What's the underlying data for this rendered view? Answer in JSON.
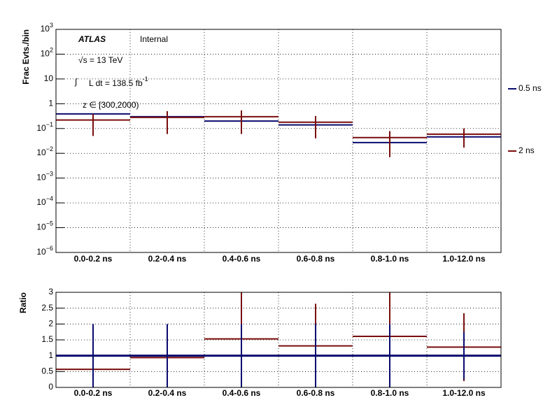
{
  "chart_data": [
    {
      "type": "step",
      "ylabel": "Frac Evts./bin",
      "categories": [
        "0.0-0.2 ns",
        "0.2-0.4 ns",
        "0.4-0.6 ns",
        "0.6-0.8 ns",
        "0.8-1.0 ns",
        "1.0-12.0 ns"
      ],
      "log_y": true,
      "ylim": [
        1e-06,
        1000
      ],
      "yticks": [
        {
          "value": 1e-06,
          "label": "10",
          "sup": "−6"
        },
        {
          "value": 1e-05,
          "label": "10",
          "sup": "−5"
        },
        {
          "value": 0.0001,
          "label": "10",
          "sup": "−4"
        },
        {
          "value": 0.001,
          "label": "10",
          "sup": "−3"
        },
        {
          "value": 0.01,
          "label": "10",
          "sup": "−2"
        },
        {
          "value": 0.1,
          "label": "10",
          "sup": "−1"
        },
        1,
        10,
        {
          "value": 100,
          "label": "10",
          "sup": "2"
        },
        {
          "value": 1000,
          "label": "10",
          "sup": "3"
        }
      ],
      "grid": true,
      "legend": "right",
      "series": [
        {
          "name": "0.5 ns",
          "color": "#0a0a6e",
          "values": [
            0.39,
            0.3,
            0.2,
            0.14,
            0.027,
            0.046
          ]
        },
        {
          "name": "2 ns",
          "color": "#7a0c0c",
          "values": [
            0.22,
            0.28,
            0.3,
            0.18,
            0.043,
            0.059
          ],
          "errors": [
            0.17,
            0.22,
            0.24,
            0.14,
            0.036,
            0.042
          ]
        }
      ],
      "annotations": [
        {
          "text": "ATLAS"
        },
        {
          "text": "Internal"
        },
        {
          "text": "√s = 13 TeV"
        },
        {
          "text": "∫"
        },
        {
          "text": "L dt = 138.5 fb",
          "sup": "-1"
        },
        {
          "text": "z ∈ [300,2000)"
        }
      ]
    },
    {
      "type": "step",
      "ylabel": "Ratio",
      "categories": [
        "0.0-0.2 ns",
        "0.2-0.4 ns",
        "0.4-0.6 ns",
        "0.6-0.8 ns",
        "0.8-1.0 ns",
        "1.0-12.0 ns"
      ],
      "ylim": [
        0,
        3
      ],
      "yticks": [
        0,
        0.5,
        1,
        1.5,
        2,
        2.5,
        3
      ],
      "grid": true,
      "series": [
        {
          "color": "#7a0c0c",
          "values": [
            0.57,
            0.94,
            1.53,
            1.31,
            1.61,
            1.27
          ],
          "errors": [
            0.7,
            1.0,
            1.6,
            1.33,
            1.6,
            1.07
          ]
        },
        {
          "color": "#0a0a6e",
          "values": [
            1,
            1,
            1,
            1,
            1,
            1
          ],
          "errors": [
            1,
            1,
            1,
            1,
            1,
            0.75
          ]
        }
      ]
    }
  ]
}
